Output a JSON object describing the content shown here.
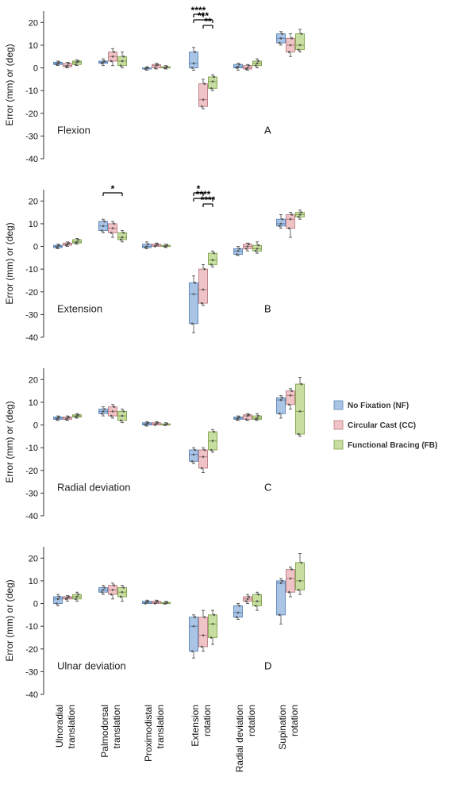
{
  "chart_data": {
    "type": "box",
    "ylabel": "Error (mm) or (deg)",
    "ylim": [
      -40,
      25
    ],
    "yticks": [
      20,
      10,
      0,
      -10,
      -20,
      -30,
      -40
    ],
    "categories": [
      [
        "Ulnoradial",
        "translation"
      ],
      [
        "Palmodorsal",
        "translation"
      ],
      [
        "Proximodistal",
        "translation"
      ],
      [
        "Extension",
        "rotation"
      ],
      [
        "Radial deviation",
        "rotation"
      ],
      [
        "Supination",
        "rotation"
      ]
    ],
    "legend": {
      "placement": "right",
      "entries": [
        {
          "label": "No Fixation (NF)",
          "color": "#a9c4e4",
          "stroke": "#5b84b6"
        },
        {
          "label": "Circular Cast (CC)",
          "color": "#f0c3c6",
          "stroke": "#b87e83"
        },
        {
          "label": "Functional Bracing (FB)",
          "color": "#c8dea0",
          "stroke": "#7ea24b"
        }
      ]
    },
    "panels": [
      {
        "name": "Flexion",
        "letter": "A",
        "significance": [
          {
            "label": "****",
            "from": [
              3,
              0
            ],
            "to": [
              3,
              1
            ]
          },
          {
            "label": "***",
            "from": [
              3,
              0
            ],
            "to": [
              3,
              2
            ]
          },
          {
            "label": "**",
            "from": [
              3,
              1
            ],
            "to": [
              3,
              2
            ]
          }
        ],
        "groups": [
          [
            [
              1,
              1.5,
              2,
              2.5,
              3
            ],
            [
              0,
              0.5,
              1,
              2,
              2.5
            ],
            [
              1,
              1.5,
              2.5,
              3,
              3.5
            ]
          ],
          [
            [
              1,
              2,
              2.5,
              3,
              4
            ],
            [
              1,
              3,
              5,
              7,
              8.5
            ],
            [
              0,
              1,
              3,
              5,
              7
            ]
          ],
          [
            [
              -1,
              -0.5,
              0,
              0,
              0.5
            ],
            [
              -0.5,
              0,
              1,
              1.5,
              2
            ],
            [
              -0.5,
              0,
              0,
              0.5,
              1
            ]
          ],
          [
            [
              -1,
              0,
              2,
              7,
              9
            ],
            [
              -18,
              -17,
              -14,
              -7,
              -5
            ],
            [
              -10,
              -9,
              -6,
              -4,
              -3
            ]
          ],
          [
            [
              -1,
              0,
              0.5,
              1.5,
              2
            ],
            [
              -1,
              -0.5,
              0,
              1,
              1.5
            ],
            [
              0,
              1,
              2,
              3,
              4
            ]
          ],
          [
            [
              10,
              11,
              13,
              15,
              16
            ],
            [
              5,
              7,
              10,
              13,
              15
            ],
            [
              7,
              8,
              10,
              15,
              17
            ]
          ]
        ]
      },
      {
        "name": "Extension",
        "letter": "B",
        "significance": [
          {
            "label": "*",
            "from": [
              1,
              0
            ],
            "to": [
              1,
              2
            ]
          },
          {
            "label": "*",
            "from": [
              3,
              0
            ],
            "to": [
              3,
              1
            ]
          },
          {
            "label": "****",
            "from": [
              3,
              0
            ],
            "to": [
              3,
              2
            ]
          },
          {
            "label": "****",
            "from": [
              3,
              1
            ],
            "to": [
              3,
              2
            ]
          }
        ],
        "groups": [
          [
            [
              -1,
              -0.5,
              0,
              0.5,
              1
            ],
            [
              0,
              0.5,
              1,
              1.5,
              2
            ],
            [
              1,
              1.5,
              2,
              3,
              3.5
            ]
          ],
          [
            [
              6,
              7,
              9,
              11,
              12
            ],
            [
              4,
              6,
              8,
              10,
              11
            ],
            [
              2,
              3,
              4,
              6,
              7
            ]
          ],
          [
            [
              -1,
              -0.5,
              0,
              1,
              2
            ],
            [
              0,
              0,
              0.5,
              1,
              1.5
            ],
            [
              -0.5,
              0,
              0,
              0.5,
              1
            ]
          ],
          [
            [
              -38,
              -34,
              -21,
              -16,
              -13
            ],
            [
              -26,
              -25,
              -19,
              -10,
              -8
            ],
            [
              -9,
              -8,
              -6,
              -3,
              -2
            ]
          ],
          [
            [
              -4,
              -3.5,
              -2,
              -1,
              0
            ],
            [
              -2,
              -1,
              0,
              1,
              1.5
            ],
            [
              -3,
              -2,
              -1,
              0.5,
              2
            ]
          ],
          [
            [
              8,
              9,
              10,
              12,
              14
            ],
            [
              4,
              8,
              12,
              14,
              15
            ],
            [
              12,
              13,
              14,
              15,
              16
            ]
          ]
        ]
      },
      {
        "name": "Radial deviation",
        "letter": "C",
        "significance": [],
        "groups": [
          [
            [
              2,
              2.5,
              3,
              3.5,
              4
            ],
            [
              2,
              2.5,
              3,
              3.5,
              4
            ],
            [
              3,
              3.5,
              4,
              4.5,
              5
            ]
          ],
          [
            [
              4,
              5,
              6,
              7,
              8
            ],
            [
              3,
              4,
              6,
              8,
              9
            ],
            [
              1,
              2,
              4,
              6,
              7
            ]
          ],
          [
            [
              -0.5,
              0,
              0.5,
              1,
              1.5
            ],
            [
              0,
              0,
              0.5,
              1,
              1.5
            ],
            [
              0,
              0,
              0,
              0.5,
              1
            ]
          ],
          [
            [
              -17,
              -16,
              -13,
              -11,
              -10
            ],
            [
              -21,
              -19,
              -14,
              -11,
              -10
            ],
            [
              -12,
              -11,
              -7,
              -3,
              -2
            ]
          ],
          [
            [
              2,
              2.5,
              3,
              3.5,
              4
            ],
            [
              2,
              2.5,
              4,
              4.5,
              5
            ],
            [
              2,
              2.5,
              3,
              4,
              5
            ]
          ],
          [
            [
              3,
              5,
              11,
              12,
              13
            ],
            [
              7,
              9,
              13,
              15,
              16
            ],
            [
              -5,
              -4,
              6,
              18,
              21
            ]
          ]
        ]
      },
      {
        "name": "Ulnar deviation",
        "letter": "D",
        "significance": [],
        "groups": [
          [
            [
              -1,
              0,
              2,
              3,
              4
            ],
            [
              1,
              2,
              2.5,
              3,
              3.5
            ],
            [
              1,
              2,
              3,
              4,
              5
            ]
          ],
          [
            [
              4,
              5,
              6,
              7,
              8
            ],
            [
              2,
              4,
              6,
              8,
              9
            ],
            [
              1,
              3,
              5,
              7,
              8
            ]
          ],
          [
            [
              0,
              0,
              0.5,
              1,
              1.5
            ],
            [
              0,
              0,
              0.5,
              1,
              1.5
            ],
            [
              0,
              0,
              0,
              0.5,
              1
            ]
          ],
          [
            [
              -24,
              -21,
              -10,
              -6,
              -5
            ],
            [
              -21,
              -19,
              -14,
              -6,
              -3
            ],
            [
              -18,
              -15,
              -9,
              -5,
              -3
            ]
          ],
          [
            [
              -7,
              -6,
              -4,
              -1,
              0
            ],
            [
              0,
              1,
              2,
              3,
              4
            ],
            [
              -3,
              -1,
              1,
              4,
              5
            ]
          ],
          [
            [
              -9,
              -5,
              9,
              10,
              11
            ],
            [
              3,
              5,
              11,
              15,
              16
            ],
            [
              4,
              6,
              10,
              18,
              22
            ]
          ]
        ]
      }
    ]
  }
}
